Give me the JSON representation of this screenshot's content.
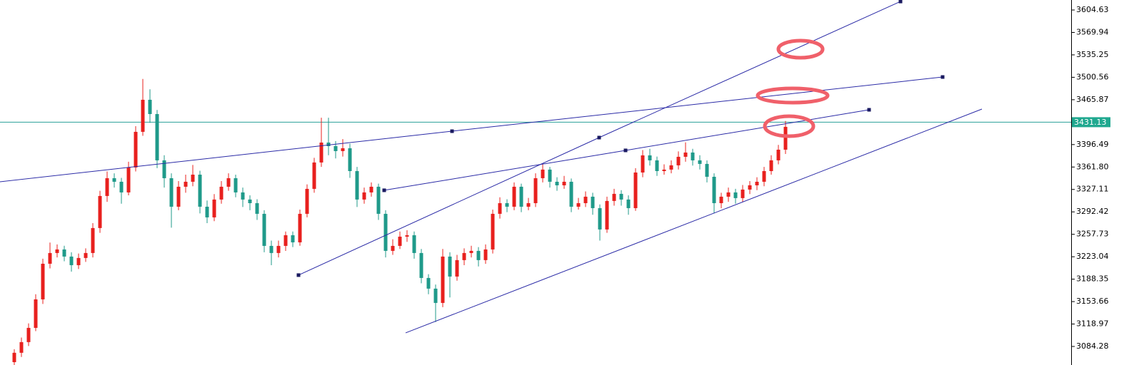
{
  "chart_data": {
    "type": "candlestick",
    "colors": {
      "up": "#e8201e",
      "down": "#1f9a8a",
      "trendline": "#2a2aa6",
      "price_line": "#2aa198",
      "price_label_bg": "#1fa88f"
    },
    "xlim": [
      -2,
      148
    ],
    "ylim": [
      3055.6,
      3620.1
    ],
    "yticks": [
      3604.63,
      3569.94,
      3535.25,
      3500.56,
      3465.87,
      3396.49,
      {
        "value": 3361.8,
        "label": "3361.80"
      },
      3327.11,
      3292.42,
      3257.73,
      3223.04,
      3188.35,
      3153.66,
      3118.97,
      3084.28
    ],
    "current_price": 3431.13,
    "candles": [
      [
        3060.0,
        3080,
        3055,
        3074.5
      ],
      [
        3074.5,
        3098,
        3068,
        3091.0
      ],
      [
        3091.0,
        3120,
        3085,
        3113.0
      ],
      [
        3113.0,
        3165,
        3108,
        3157.1
      ],
      [
        3157.1,
        3220,
        3150,
        3212.2
      ],
      [
        3212.2,
        3245,
        3205,
        3228.8
      ],
      [
        3228.8,
        3242,
        3222,
        3234.3
      ],
      [
        3234.3,
        3240,
        3216,
        3223.3
      ],
      [
        3223.3,
        3230,
        3200,
        3210.0
      ],
      [
        3210.0,
        3228,
        3204,
        3221.1
      ],
      [
        3221.1,
        3236,
        3215,
        3228.8
      ],
      [
        3228.8,
        3275,
        3222,
        3267.4
      ],
      [
        3267.4,
        3325,
        3260,
        3317.0
      ],
      [
        3317.0,
        3355,
        3308,
        3344.5
      ],
      [
        3344.5,
        3352,
        3330,
        3339.0
      ],
      [
        3339.0,
        3345,
        3305,
        3322.5
      ],
      [
        3322.5,
        3370,
        3318,
        3361.1
      ],
      [
        3361.1,
        3425,
        3355,
        3416.2
      ],
      [
        3416.2,
        3498,
        3410,
        3465.8
      ],
      [
        3465.8,
        3482,
        3430,
        3443.7
      ],
      [
        3443.7,
        3450,
        3360,
        3372.1
      ],
      [
        3372.1,
        3380,
        3330,
        3344.5
      ],
      [
        3344.5,
        3352,
        3268,
        3300.4
      ],
      [
        3300.4,
        3340,
        3295,
        3331.3
      ],
      [
        3331.3,
        3350,
        3322,
        3339.0
      ],
      [
        3339.0,
        3365,
        3332,
        3350.0
      ],
      [
        3350.0,
        3356,
        3290,
        3300.4
      ],
      [
        3300.4,
        3310,
        3275,
        3283.9
      ],
      [
        3283.9,
        3320,
        3278,
        3311.5
      ],
      [
        3311.5,
        3340,
        3305,
        3331.3
      ],
      [
        3331.3,
        3352,
        3325,
        3344.5
      ],
      [
        3344.5,
        3350,
        3315,
        3322.5
      ],
      [
        3322.5,
        3330,
        3300,
        3311.5
      ],
      [
        3311.5,
        3318,
        3295,
        3305.9
      ],
      [
        3305.9,
        3312,
        3280,
        3289.4
      ],
      [
        3289.4,
        3295,
        3230,
        3239.8
      ],
      [
        3239.8,
        3248,
        3210,
        3228.8
      ],
      [
        3228.8,
        3248,
        3222,
        3239.8
      ],
      [
        3239.8,
        3262,
        3232,
        3256.3
      ],
      [
        3256.3,
        3262,
        3238,
        3245.3
      ],
      [
        3245.3,
        3296,
        3240,
        3289.4
      ],
      [
        3289.4,
        3335,
        3284,
        3328.0
      ],
      [
        3328.0,
        3376,
        3322,
        3368.8
      ],
      [
        3368.8,
        3438,
        3362,
        3399.6
      ],
      [
        3399.6,
        3438,
        3380,
        3394.1
      ],
      [
        3394.1,
        3402,
        3375,
        3386.4
      ],
      [
        3386.4,
        3405,
        3378,
        3390.8
      ],
      [
        3390.8,
        3398,
        3345,
        3355.5
      ],
      [
        3355.5,
        3362,
        3300,
        3311.5
      ],
      [
        3311.5,
        3330,
        3305,
        3322.5
      ],
      [
        3322.5,
        3338,
        3316,
        3331.3
      ],
      [
        3331.3,
        3336,
        3280,
        3289.4
      ],
      [
        3289.4,
        3295,
        3222,
        3232.1
      ],
      [
        3232.1,
        3250,
        3226,
        3239.8
      ],
      [
        3239.8,
        3262,
        3235,
        3254.1
      ],
      [
        3254.1,
        3264,
        3246,
        3256.3
      ],
      [
        3256.3,
        3262,
        3220,
        3228.8
      ],
      [
        3228.8,
        3235,
        3182,
        3190.2
      ],
      [
        3190.2,
        3196,
        3165,
        3173.7
      ],
      [
        3173.7,
        3180,
        3122,
        3151.6
      ],
      [
        3151.6,
        3235,
        3145,
        3223.3
      ],
      [
        3223.3,
        3230,
        3160,
        3192.4
      ],
      [
        3192.4,
        3226,
        3186,
        3217.8
      ],
      [
        3217.8,
        3236,
        3210,
        3228.8
      ],
      [
        3228.8,
        3240,
        3222,
        3232.1
      ],
      [
        3232.1,
        3238,
        3208,
        3217.8
      ],
      [
        3217.8,
        3242,
        3212,
        3234.3
      ],
      [
        3234.3,
        3296,
        3228,
        3289.4
      ],
      [
        3289.4,
        3315,
        3282,
        3305.9
      ],
      [
        3305.9,
        3312,
        3292,
        3300.4
      ],
      [
        3300.4,
        3338,
        3295,
        3331.3
      ],
      [
        3331.3,
        3336,
        3292,
        3300.4
      ],
      [
        3300.4,
        3314,
        3295,
        3305.9
      ],
      [
        3305.9,
        3352,
        3300,
        3344.5
      ],
      [
        3344.5,
        3366,
        3338,
        3357.8
      ],
      [
        3357.8,
        3362,
        3330,
        3339.0
      ],
      [
        3339.0,
        3346,
        3325,
        3333.5
      ],
      [
        3333.5,
        3348,
        3328,
        3339.0
      ],
      [
        3339.0,
        3344,
        3292,
        3300.4
      ],
      [
        3300.4,
        3314,
        3296,
        3305.9
      ],
      [
        3305.9,
        3324,
        3300,
        3315.9
      ],
      [
        3315.9,
        3322,
        3288,
        3298.2
      ],
      [
        3298.2,
        3304,
        3248,
        3265.2
      ],
      [
        3265.2,
        3316,
        3260,
        3309.3
      ],
      [
        3309.3,
        3328,
        3302,
        3320.3
      ],
      [
        3320.3,
        3326,
        3302,
        3311.5
      ],
      [
        3311.5,
        3318,
        3288,
        3298.2
      ],
      [
        3298.2,
        3360,
        3294,
        3353.3
      ],
      [
        3353.3,
        3388,
        3346,
        3379.8
      ],
      [
        3379.8,
        3390,
        3364,
        3372.1
      ],
      [
        3372.1,
        3378,
        3348,
        3355.5
      ],
      [
        3355.5,
        3366,
        3350,
        3357.8
      ],
      [
        3357.8,
        3372,
        3352,
        3364.4
      ],
      [
        3364.4,
        3386,
        3358,
        3377.6
      ],
      [
        3377.6,
        3400,
        3370,
        3384.2
      ],
      [
        3384.2,
        3390,
        3364,
        3372.1
      ],
      [
        3372.1,
        3380,
        3358,
        3366.6
      ],
      [
        3366.6,
        3372,
        3338,
        3346.7
      ],
      [
        3346.7,
        3352,
        3290,
        3305.9
      ],
      [
        3305.9,
        3322,
        3298,
        3315.9
      ],
      [
        3315.9,
        3330,
        3308,
        3322.5
      ],
      [
        3322.5,
        3328,
        3305,
        3313.7
      ],
      [
        3313.7,
        3334,
        3308,
        3326.9
      ],
      [
        3326.9,
        3340,
        3320,
        3333.5
      ],
      [
        3333.5,
        3346,
        3326,
        3339.0
      ],
      [
        3339.0,
        3362,
        3332,
        3355.5
      ],
      [
        3355.5,
        3380,
        3350,
        3372.1
      ],
      [
        3372.1,
        3396,
        3366,
        3388.6
      ],
      [
        3388.6,
        3433,
        3382,
        3423.9
      ]
    ],
    "trendlines": [
      {
        "x": [
          39.8,
          81.9,
          124.1
        ],
        "y": [
          3194.6,
          3407.3,
          3617.8
        ],
        "anchors": [
          0,
          1,
          2
        ]
      },
      {
        "x": [
          -2,
          61.3,
          130
        ],
        "y": [
          3339.0,
          3417.2,
          3501.0
        ],
        "anchors": [
          1,
          2
        ]
      },
      {
        "x": [
          51.8,
          85.6,
          119.7
        ],
        "y": [
          3325.8,
          3387.5,
          3450.3
        ],
        "anchors": [
          0,
          1,
          2
        ]
      },
      {
        "x": [
          54.8,
          135.5
        ],
        "y": [
          3105.3,
          3451.4
        ],
        "anchors": []
      }
    ]
  }
}
